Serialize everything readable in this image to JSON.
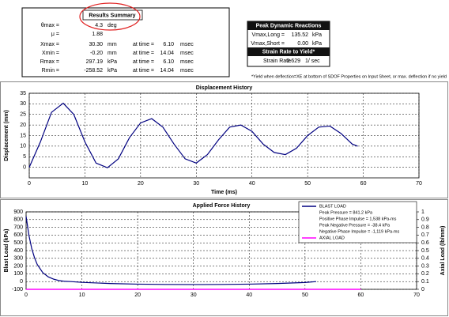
{
  "results_summary": {
    "title": "Results Summary",
    "rows": [
      [
        "θmax =",
        "4.3",
        "deg"
      ],
      [
        "μ =",
        "1.88"
      ],
      [
        "Xmax =",
        "30.30",
        "mm",
        "at time =",
        "6.10",
        "msec"
      ],
      [
        "Xmin =",
        "-0.20",
        "mm",
        "at time =",
        "14.04",
        "msec"
      ],
      [
        "Rmax =",
        "297.19",
        "kPa",
        "at time =",
        "6.10",
        "msec"
      ],
      [
        "Rmin =",
        "-258.52",
        "kPa",
        "at time =",
        "14.04",
        "msec"
      ]
    ]
  },
  "peak_reactions": {
    "title": "Peak Dynamic Reactions",
    "rows": [
      [
        "Vmax,Long =",
        "135.52",
        "kPa"
      ],
      [
        "Vmax,Short =",
        "0.00",
        "kPa"
      ]
    ],
    "strain_title": "Strain Rate to Yield*",
    "strain_row": [
      "Strain Rate",
      "0.629",
      "1/ sec"
    ]
  },
  "footnote": "*Yield when deflection=XE at bottom of SDOF Properties on Input Sheet, or max. deflection if no yield",
  "chart_data": [
    {
      "type": "line",
      "title": "Displacement History",
      "x_label": "Time (ms)",
      "y_label": "Displacement (mm)",
      "xlim": [
        0,
        70
      ],
      "xticks": [
        0,
        10,
        20,
        30,
        40,
        50,
        60,
        70
      ],
      "ylim": [
        -5,
        35
      ],
      "yticks": [
        0,
        5,
        10,
        15,
        20,
        25,
        30,
        35
      ],
      "grid": true,
      "series": [
        {
          "color": "#000080",
          "x": [
            0,
            2,
            4,
            6.1,
            8,
            10,
            12,
            14.04,
            16,
            18,
            20,
            22,
            24,
            26,
            28,
            30,
            32,
            34,
            36,
            38,
            40,
            42,
            44,
            46,
            48,
            50,
            52,
            54,
            56,
            58,
            59
          ],
          "values": [
            0,
            12,
            26,
            30.3,
            25,
            12,
            2,
            -0.2,
            4,
            14,
            21,
            23,
            19,
            11,
            4,
            2,
            6,
            13,
            19,
            20,
            17,
            11,
            7,
            6,
            9,
            15,
            19,
            19.5,
            16,
            11,
            10
          ]
        }
      ]
    },
    {
      "type": "line",
      "title": "Applied Force History",
      "y_label": "Blast Load (kPa)",
      "y2_label": "Axial Load (lb/mm)",
      "xlim": [
        0,
        70
      ],
      "xticks": [
        0,
        10,
        20,
        30,
        40,
        50,
        60,
        70
      ],
      "ylim": [
        -100,
        900
      ],
      "yticks": [
        -100,
        0,
        100,
        200,
        300,
        400,
        500,
        600,
        700,
        800,
        900
      ],
      "y2lim": [
        0,
        1
      ],
      "y2ticks": [
        0,
        0.1,
        0.2,
        0.3,
        0.4,
        0.5,
        0.6,
        0.7,
        0.8,
        0.9,
        1
      ],
      "grid": true,
      "legend": "upper right",
      "legend_notes": [
        "Peak Pressure = 841.2 kPa",
        "Positive Phase Impulse = 1,538 kPa-ms",
        "Peak Negative Pressure = -38.4 kPa",
        "Negative Phase Impulse = -1,119 kPa-ms"
      ],
      "series": [
        {
          "name": "BLAST LOAD",
          "color": "#000080",
          "x": [
            0,
            0.5,
            1,
            1.5,
            2,
            3,
            4,
            5,
            6,
            7,
            8,
            10,
            15,
            20,
            25,
            30,
            35,
            40,
            45,
            50,
            52
          ],
          "values": [
            841.2,
            600,
            430,
            310,
            220,
            115,
            60,
            30,
            12,
            3,
            0,
            -10,
            -25,
            -33,
            -37,
            -38.4,
            -37,
            -33,
            -25,
            -12,
            0
          ]
        },
        {
          "name": "AXIAL LOAD",
          "color": "#ff00ff",
          "axis": "y2",
          "x": [
            0,
            60
          ],
          "values": [
            0,
            0
          ]
        }
      ]
    }
  ]
}
